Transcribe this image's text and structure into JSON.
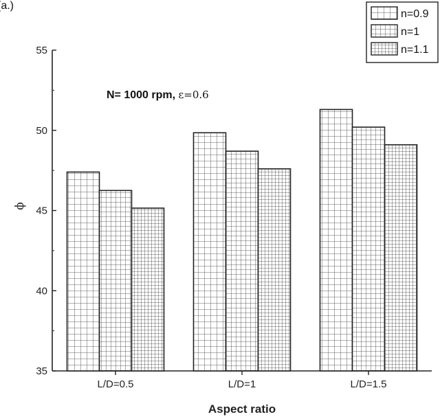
{
  "page": {
    "corner_text": "(a.)"
  },
  "chart_data": {
    "type": "bar",
    "categories": [
      "L/D=0.5",
      "L/D=1",
      "L/D=1.5"
    ],
    "series": [
      {
        "name": "n=0.9",
        "values": [
          47.4,
          49.85,
          51.3
        ],
        "pattern": "grid-coarse"
      },
      {
        "name": "n=1",
        "values": [
          46.25,
          48.7,
          50.2
        ],
        "pattern": "grid-medium"
      },
      {
        "name": "n=1.1",
        "values": [
          45.15,
          47.6,
          49.1
        ],
        "pattern": "grid-fine"
      }
    ],
    "xlabel": "Aspect ratio",
    "ylabel": "ϕ",
    "ylim": [
      35,
      55
    ],
    "yticks": [
      35,
      40,
      45,
      50,
      55
    ],
    "annotation": {
      "main": "N= 1000 rpm, ",
      "suffix": "ε=0.6"
    },
    "legend_position": "top-right",
    "grid": false,
    "bar_fill": "#ffffff",
    "line_color": "#222222"
  }
}
